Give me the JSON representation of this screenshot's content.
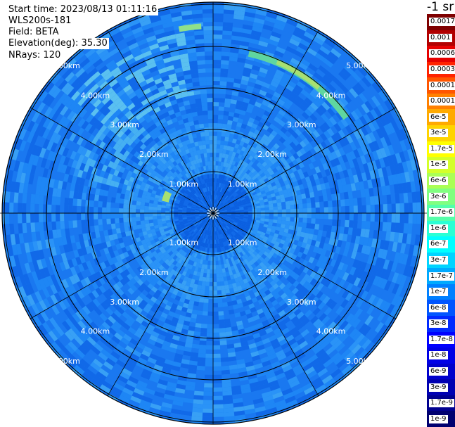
{
  "header": {
    "start_time": "Start time: 2023/08/13 01:11:16",
    "instrument": "WLS200s-181",
    "field": "Field: BETA",
    "elevation": "Elevation(deg): 35.30",
    "nrays": "NRays: 120"
  },
  "range_labels": [
    "1.00km",
    "2.00km",
    "3.00km",
    "4.00km",
    "5.00km"
  ],
  "colorbar": {
    "unit_title": "-1 sr",
    "labels": [
      "0.0017",
      "0.001",
      "0.0006",
      "0.0003",
      "0.00017",
      "0.0001",
      "6e-5",
      "3e-5",
      "1.7e-5",
      "1e-5",
      "6e-6",
      "3e-6",
      "1.7e-6",
      "1e-6",
      "6e-7",
      "3e-7",
      "1.7e-7",
      "1e-7",
      "6e-8",
      "3e-8",
      "1.7e-8",
      "1e-8",
      "6e-9",
      "3e-9",
      "1.7e-9",
      "1e-9"
    ],
    "colors": [
      "#7f0000",
      "#b20000",
      "#e60000",
      "#ff2200",
      "#ff5500",
      "#ff8000",
      "#ffaa00",
      "#ffd400",
      "#ffff00",
      "#d4ff2a",
      "#aaff55",
      "#80ff80",
      "#55ffaa",
      "#2affd4",
      "#00ffff",
      "#00d4ff",
      "#00aaff",
      "#0080ff",
      "#0055ff",
      "#002aff",
      "#0000ff",
      "#0000e6",
      "#0000cc",
      "#0000b2",
      "#00008f",
      "#000070"
    ]
  }
}
